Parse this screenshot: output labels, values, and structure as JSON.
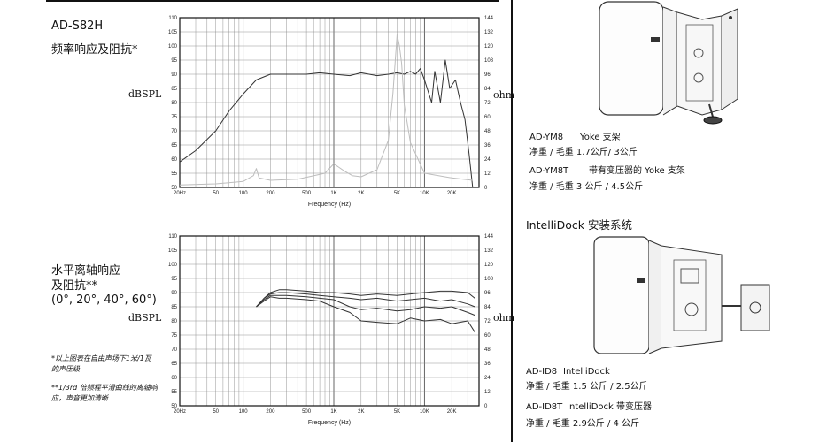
{
  "left": {
    "model": "AD-S82H",
    "chart1_title": "频率响应及阻抗*",
    "chart2_title_lines": [
      "水平离轴响应",
      "及阻抗**",
      "(0°, 20°, 40°, 60°)"
    ],
    "left_unit": "dBSPL",
    "right_unit": "ohm",
    "notes": [
      "*以上图表在自由声场下1米/1瓦的声压级",
      "**1/3rd 倍频程平滑曲线的离轴响应，声音更加清晰"
    ]
  },
  "right": {
    "yoke_lines": [
      {
        "model": "AD-YM8",
        "desc": "Yoke 支架"
      },
      {
        "model": "",
        "desc": "净重 / 毛重    1.7公斤/ 3公斤"
      },
      {
        "model": "AD-YM8T",
        "desc": "带有变压器的 Yoke 支架"
      },
      {
        "model": "",
        "desc": "净重 / 毛重    3 公斤 / 4.5公斤"
      }
    ],
    "intellidock_heading": "IntelliDock 安装系统",
    "id_lines": [
      {
        "model": "AD-ID8",
        "desc": "IntelliDock"
      },
      {
        "model": "",
        "desc": "净重 / 毛重          1.5 公斤 / 2.5公斤"
      },
      {
        "model": "AD-ID8T",
        "desc": "IntelliDock 带变压器"
      },
      {
        "model": "",
        "desc": "净重 / 毛重          2.9公斤 / 4 公斤"
      }
    ]
  },
  "chart_data": [
    {
      "type": "line",
      "xlabel": "Frequency (Hz)",
      "ylabel": "dBSPL",
      "y2label": "ohm",
      "x_scale": "log",
      "xlim": [
        20,
        40000
      ],
      "ylim": [
        50,
        110
      ],
      "y2lim": [
        0,
        144
      ],
      "x_ticks": [
        "20Hz",
        "50",
        "100",
        "200",
        "500",
        "1K",
        "2K",
        "5K",
        "10K",
        "20K"
      ],
      "y_ticks": [
        50,
        55,
        60,
        65,
        70,
        75,
        80,
        85,
        90,
        95,
        100,
        105,
        110
      ],
      "y2_ticks": [
        0,
        12,
        24,
        36,
        48,
        60,
        72,
        84,
        96,
        108,
        120,
        132,
        144
      ],
      "grid": true,
      "series": [
        {
          "axis": "left",
          "color": "#333333",
          "x": [
            20,
            30,
            50,
            70,
            100,
            140,
            200,
            300,
            500,
            700,
            1000,
            1500,
            2000,
            3000,
            4000,
            5000,
            6000,
            7000,
            8000,
            9000,
            10000,
            12000,
            13000,
            15000,
            17000,
            19000,
            22000,
            25000,
            28000,
            31000,
            34000
          ],
          "y": [
            59,
            63,
            70,
            77,
            83,
            88,
            90,
            90,
            90,
            90.5,
            90,
            89.5,
            90.5,
            89.5,
            90,
            90.5,
            90,
            91,
            90,
            92,
            88,
            80,
            91,
            80,
            95,
            85,
            88,
            80,
            74,
            62,
            50
          ]
        },
        {
          "axis": "right",
          "color": "#bdbdbd",
          "x": [
            20,
            50,
            100,
            130,
            140,
            150,
            200,
            400,
            800,
            1000,
            1300,
            1600,
            2000,
            3000,
            4000,
            4500,
            5000,
            5300,
            5600,
            6000,
            7000,
            10000,
            20000,
            34000
          ],
          "y": [
            2,
            3,
            5,
            10,
            16,
            8,
            6,
            7,
            12,
            20,
            14,
            10,
            9,
            15,
            40,
            80,
            130,
            120,
            105,
            70,
            38,
            12,
            8,
            6
          ]
        }
      ]
    },
    {
      "type": "line",
      "xlabel": "Frequency (Hz)",
      "ylabel": "dBSPL",
      "y2label": "ohm",
      "x_scale": "log",
      "xlim": [
        20,
        40000
      ],
      "ylim": [
        50,
        110
      ],
      "y2lim": [
        0,
        144
      ],
      "x_ticks": [
        "20Hz",
        "50",
        "100",
        "200",
        "500",
        "1K",
        "2K",
        "5K",
        "10K",
        "20K"
      ],
      "y_ticks": [
        50,
        55,
        60,
        65,
        70,
        75,
        80,
        85,
        90,
        95,
        100,
        105,
        110
      ],
      "y2_ticks": [
        0,
        12,
        24,
        36,
        48,
        60,
        72,
        84,
        96,
        108,
        120,
        132,
        144
      ],
      "grid": true,
      "series": [
        {
          "axis": "left",
          "color": "#333333",
          "x": [
            140,
            170,
            200,
            250,
            300,
            500,
            700,
            1000,
            1500,
            2000,
            3000,
            5000,
            7000,
            10000,
            15000,
            20000,
            30000,
            36000
          ],
          "y": [
            85,
            88,
            90,
            91,
            91,
            90.5,
            90,
            90,
            89.5,
            89,
            89.5,
            89,
            89.5,
            90,
            90.5,
            90.5,
            90,
            88
          ]
        },
        {
          "axis": "left",
          "color": "#333333",
          "x": [
            140,
            170,
            200,
            250,
            300,
            500,
            700,
            1000,
            1500,
            2000,
            3000,
            5000,
            7000,
            10000,
            15000,
            20000,
            30000,
            36000
          ],
          "y": [
            85,
            88,
            89.5,
            90,
            90,
            89.5,
            89,
            88.5,
            88,
            87.5,
            88,
            87,
            87.5,
            88,
            87,
            87.5,
            86,
            85
          ]
        },
        {
          "axis": "left",
          "color": "#333333",
          "x": [
            140,
            170,
            200,
            250,
            300,
            500,
            700,
            1000,
            1500,
            2000,
            3000,
            5000,
            7000,
            10000,
            15000,
            20000,
            30000,
            36000
          ],
          "y": [
            85,
            87.5,
            89,
            89,
            89,
            88.5,
            88,
            87.5,
            85,
            84,
            84.5,
            83.5,
            84,
            85,
            84.5,
            85,
            83,
            82
          ]
        },
        {
          "axis": "left",
          "color": "#333333",
          "x": [
            140,
            170,
            200,
            250,
            300,
            500,
            700,
            1000,
            1500,
            2000,
            3000,
            5000,
            7000,
            10000,
            15000,
            20000,
            30000,
            36000
          ],
          "y": [
            85,
            87,
            88.5,
            88,
            88,
            87.5,
            87,
            85,
            83,
            80,
            79.5,
            79,
            81,
            80,
            80.5,
            79,
            80,
            76
          ]
        }
      ]
    }
  ]
}
